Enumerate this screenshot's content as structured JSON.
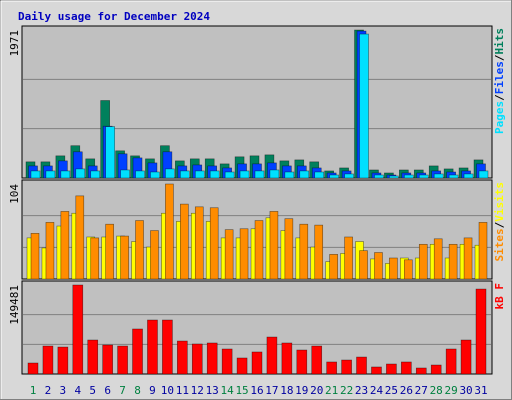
{
  "chart_data": [
    {
      "type": "bar",
      "title": "Daily usage for December 2024",
      "legend_separator": "/",
      "ylim": [
        0,
        1971
      ],
      "yticks": [
        1971
      ],
      "series": [
        {
          "name": "Hits",
          "color": "#00805c",
          "values": [
            215,
            215,
            295,
            430,
            255,
            1032,
            362,
            295,
            255,
            430,
            228,
            255,
            255,
            188,
            282,
            295,
            308,
            228,
            241,
            215,
            94,
            134,
            1971,
            107,
            67,
            107,
            107,
            161,
            121,
            134,
            241
          ]
        },
        {
          "name": "Files",
          "color": "#0040ff",
          "values": [
            161,
            161,
            228,
            349,
            161,
            690,
            322,
            268,
            201,
            349,
            161,
            174,
            161,
            134,
            188,
            188,
            201,
            161,
            161,
            134,
            67,
            94,
            1957,
            67,
            40,
            67,
            67,
            94,
            80,
            94,
            188
          ]
        },
        {
          "name": "Pages",
          "color": "#00e0ff",
          "values": [
            94,
            94,
            94,
            121,
            94,
            684,
            107,
            94,
            80,
            121,
            94,
            94,
            94,
            80,
            94,
            94,
            107,
            80,
            94,
            80,
            40,
            54,
            1917,
            40,
            27,
            40,
            40,
            54,
            40,
            54,
            94
          ]
        }
      ]
    },
    {
      "type": "bar",
      "legend_separator": "/",
      "ylim": [
        0,
        104
      ],
      "yticks": [
        104
      ],
      "series": [
        {
          "name": "Visits",
          "color": "#ffff00",
          "values": [
            45,
            34,
            58,
            72,
            46,
            46,
            47,
            41,
            35,
            72,
            63,
            72,
            63,
            45,
            45,
            55,
            67,
            53,
            45,
            35,
            19,
            28,
            41,
            22,
            17,
            23,
            23,
            38,
            23,
            38,
            37
          ]
        },
        {
          "name": "Sites",
          "color": "#ff8c00",
          "values": [
            50,
            62,
            74,
            91,
            45,
            60,
            47,
            64,
            53,
            104,
            82,
            79,
            78,
            54,
            55,
            64,
            74,
            66,
            60,
            59,
            27,
            46,
            31,
            29,
            23,
            21,
            38,
            44,
            38,
            45,
            62
          ]
        }
      ]
    },
    {
      "type": "bar",
      "ylim": [
        0,
        149481
      ],
      "yticks": [
        149481
      ],
      "categories": [
        "1",
        "2",
        "3",
        "4",
        "5",
        "6",
        "7",
        "8",
        "9",
        "10",
        "11",
        "12",
        "13",
        "14",
        "15",
        "16",
        "17",
        "18",
        "19",
        "20",
        "21",
        "22",
        "23",
        "24",
        "25",
        "26",
        "27",
        "28",
        "29",
        "30",
        "31"
      ],
      "category_colors": [
        "#008040",
        "#0000a0",
        "#0000a0",
        "#0000a0",
        "#0000a0",
        "#0000a0",
        "#008040",
        "#008040",
        "#0000a0",
        "#0000a0",
        "#0000a0",
        "#0000a0",
        "#0000a0",
        "#008040",
        "#008040",
        "#0000a0",
        "#0000a0",
        "#0000a0",
        "#0000a0",
        "#0000a0",
        "#008040",
        "#008040",
        "#0000a0",
        "#0000a0",
        "#0000a0",
        "#0000a0",
        "#0000a0",
        "#008040",
        "#008040",
        "#0000a0",
        "#0000a0"
      ],
      "series": [
        {
          "name": "kB F",
          "color": "#ff0000",
          "values": [
            18474,
            47000,
            45300,
            149481,
            57100,
            48700,
            47000,
            75600,
            90700,
            90700,
            55400,
            50400,
            52100,
            42000,
            26900,
            37000,
            62100,
            52100,
            40300,
            47000,
            20200,
            23500,
            28500,
            11800,
            16800,
            20200,
            10100,
            15100,
            42000,
            57100,
            142700
          ]
        }
      ]
    }
  ]
}
